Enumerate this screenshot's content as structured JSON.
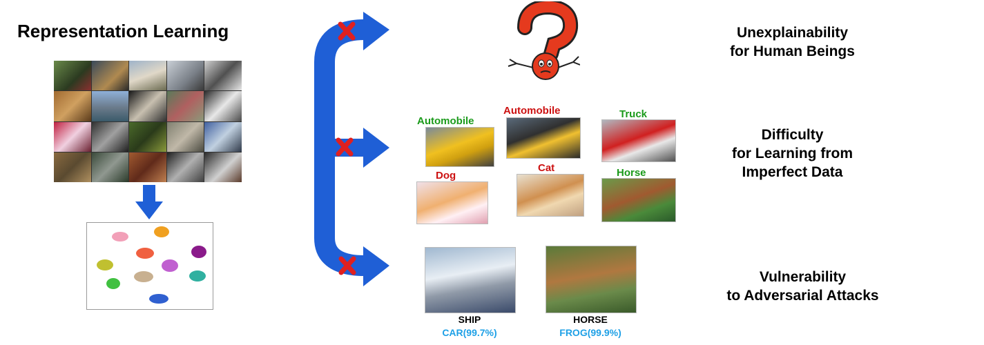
{
  "title": "Representation Learning",
  "colors": {
    "arrow_blue": "#1f5fd6",
    "cross_red": "#e02020",
    "question_red": "#e53a1e",
    "label_green": "#1a9a1a",
    "label_red": "#cc1111",
    "prediction_blue": "#1ea0e6"
  },
  "issues": {
    "unexplainability": {
      "line1": "Unexplainability",
      "line2": "for Human Beings"
    },
    "difficulty": {
      "line1": "Difficulty",
      "line2": "for Learning from",
      "line3": "Imperfect Data"
    },
    "vulnerability": {
      "line1": "Vulnerability",
      "line2": "to Adversarial Attacks"
    }
  },
  "noisy_labels": [
    {
      "label": "Automobile",
      "status": "correct",
      "image": "sports-car"
    },
    {
      "label": "Automobile",
      "status": "wrong",
      "image": "dump-truck"
    },
    {
      "label": "Truck",
      "status": "correct",
      "image": "fire-truck"
    },
    {
      "label": "Dog",
      "status": "wrong",
      "image": "kitten"
    },
    {
      "label": "Cat",
      "status": "wrong",
      "image": "pomeranian"
    },
    {
      "label": "Horse",
      "status": "correct",
      "image": "grazing-horse"
    }
  ],
  "adversarial": [
    {
      "true_label": "SHIP",
      "prediction": "CAR(99.7%)",
      "image": "cruise-ship"
    },
    {
      "true_label": "HORSE",
      "prediction": "FROG(99.9%)",
      "image": "running-horse"
    }
  ],
  "icons": [
    "question-mark-character-icon",
    "down-arrow-icon",
    "branch-arrow-icon",
    "cross-icon"
  ]
}
